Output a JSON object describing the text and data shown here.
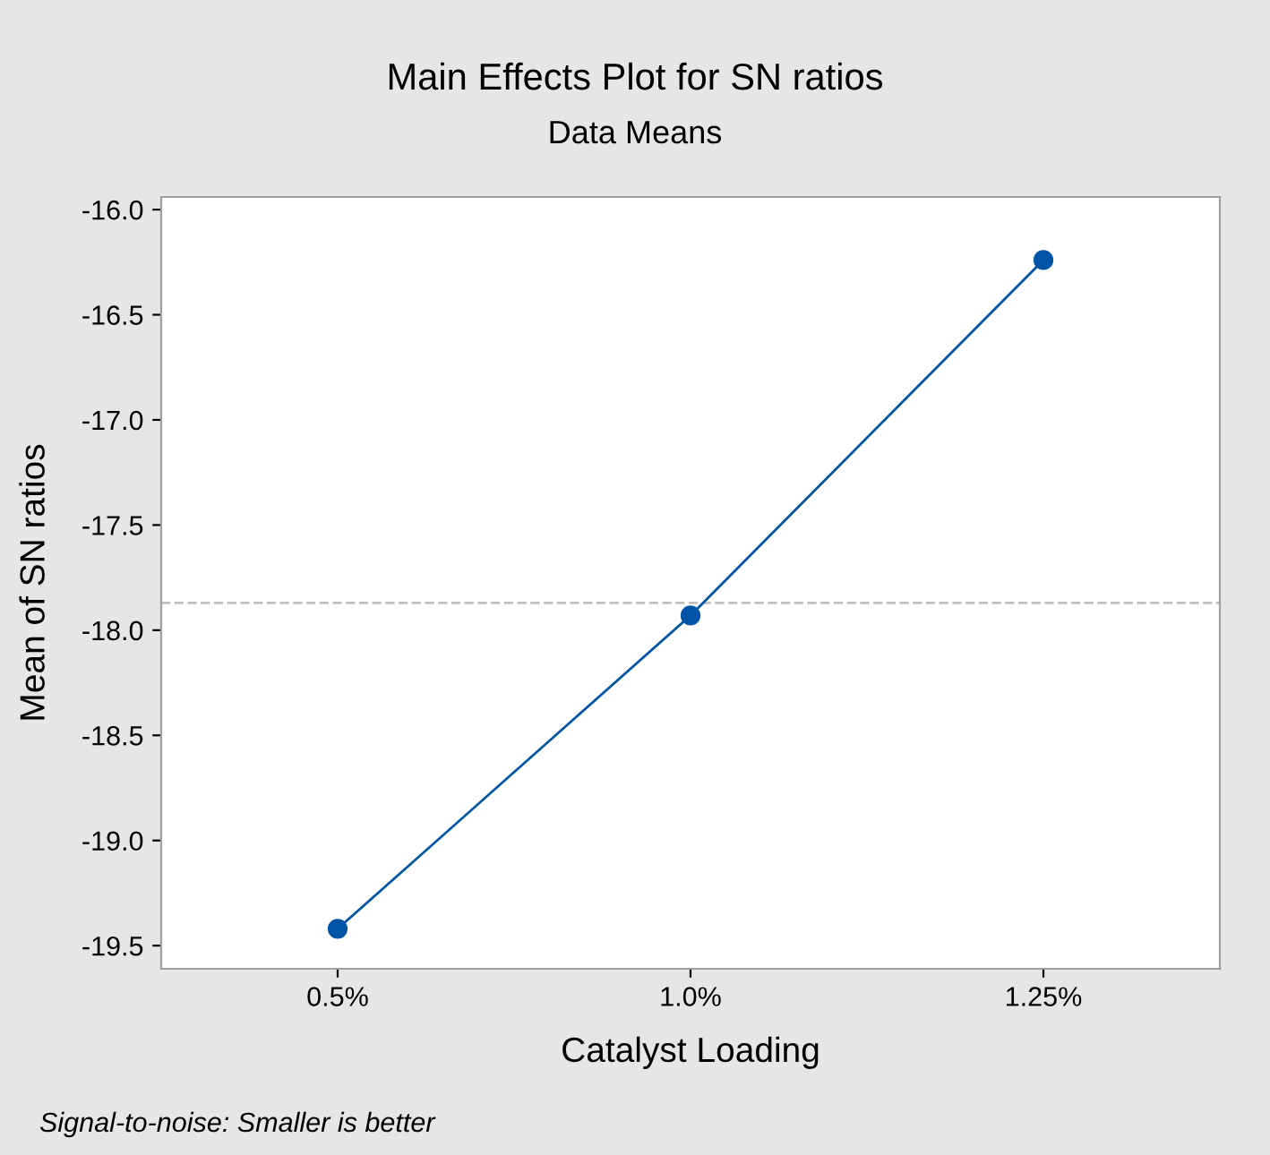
{
  "chart_data": {
    "type": "line",
    "title": "Main Effects Plot for SN ratios",
    "subtitle": "Data Means",
    "xlabel": "Catalyst Loading",
    "ylabel": "Mean of SN ratios",
    "categories": [
      "0.5%",
      "1.0%",
      "1.25%"
    ],
    "series": [
      {
        "color": "#0054a6",
        "values": [
          -19.42,
          -17.93,
          -16.24
        ]
      }
    ],
    "marker": "circle",
    "line_style": "solid",
    "grid": false,
    "legend": false,
    "ylim": [
      -19.61,
      -15.94
    ],
    "yticks": [
      {
        "value": -16.0,
        "label": "-16.0"
      },
      -16.5,
      {
        "value": -17.0,
        "label": "-17.0"
      },
      -17.5,
      {
        "value": -18.0,
        "label": "-18.0"
      },
      -18.5,
      {
        "value": -19.0,
        "label": "-19.0"
      },
      -19.5
    ],
    "ref_lines": [
      {
        "axis": "y",
        "value": -17.87,
        "color": "#c0c0c0",
        "line_style": "dashed"
      }
    ],
    "annotations": [
      "Signal-to-noise: Smaller is better"
    ]
  }
}
